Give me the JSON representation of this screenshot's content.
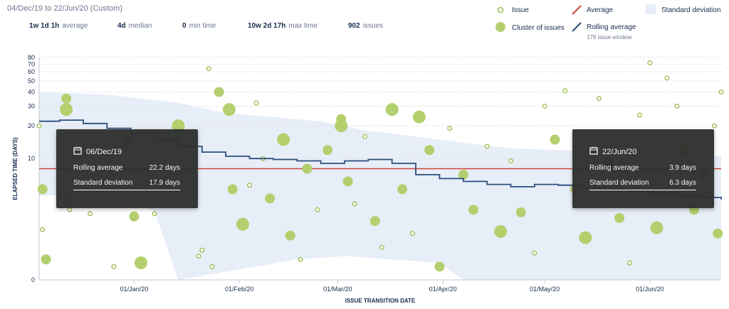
{
  "header": {
    "date_range": "04/Dec/19 to 22/Jun/20 (Custom)",
    "stats": [
      {
        "value": "1w 1d 1h",
        "label": "average"
      },
      {
        "value": "4d",
        "label": "median"
      },
      {
        "value": "0",
        "label": "min time"
      },
      {
        "value": "10w 2d 17h",
        "label": "max time"
      },
      {
        "value": "902",
        "label": "issues"
      }
    ]
  },
  "legend": {
    "issue": "Issue",
    "cluster": "Cluster of issues",
    "average": "Average",
    "rolling": "Rolling average",
    "rolling_window": "179 issue window",
    "stddev": "Standard deviation"
  },
  "colors": {
    "issue": "#a4c15b",
    "cluster": "#b4cf6e",
    "average": "#d04437",
    "rolling": "#2c4d7c",
    "stddev": "#e7eef8",
    "tooltip_bg": "#2f2f2f"
  },
  "tooltips": [
    {
      "date": "06/Dec/19",
      "rolling_label": "Rolling average",
      "rolling_value": "22.2 days",
      "sd_label": "Standard deviation",
      "sd_value": "17.9 days"
    },
    {
      "date": "22/Jun/20",
      "rolling_label": "Rolling average",
      "rolling_value": "3.9 days",
      "sd_label": "Standard deviation",
      "sd_value": "6.3 days"
    }
  ],
  "chart_data": {
    "type": "scatter",
    "xlabel": "ISSUE TRANSITION DATE",
    "ylabel": "ELAPSED TIME (DAYS)",
    "x_range": [
      "2019-12-04",
      "2020-06-22"
    ],
    "x_tick_labels": [
      "01/Jan/20",
      "01/Feb/20",
      "01/Mar/20",
      "01/Apr/20",
      "01/May/20",
      "01/Jun/20"
    ],
    "y_scale": "log",
    "y_ticks": [
      0,
      10,
      20,
      30,
      40,
      50,
      60,
      70,
      80
    ],
    "average_days": 8,
    "rolling_average": [
      [
        "2019-12-04",
        22
      ],
      [
        "2019-12-10",
        22.5
      ],
      [
        "2019-12-17",
        21
      ],
      [
        "2019-12-24",
        19
      ],
      [
        "2019-12-31",
        17
      ],
      [
        "2020-01-07",
        15
      ],
      [
        "2020-01-14",
        13
      ],
      [
        "2020-01-21",
        11.5
      ],
      [
        "2020-01-28",
        10.5
      ],
      [
        "2020-02-04",
        10
      ],
      [
        "2020-02-11",
        9.8
      ],
      [
        "2020-02-18",
        9.5
      ],
      [
        "2020-02-25",
        9
      ],
      [
        "2020-03-03",
        9.5
      ],
      [
        "2020-03-10",
        9.8
      ],
      [
        "2020-03-17",
        9
      ],
      [
        "2020-03-24",
        7
      ],
      [
        "2020-03-31",
        6.4
      ],
      [
        "2020-04-07",
        6
      ],
      [
        "2020-04-14",
        5.6
      ],
      [
        "2020-04-21",
        5.3
      ],
      [
        "2020-04-28",
        5.6
      ],
      [
        "2020-05-05",
        5.5
      ],
      [
        "2020-05-12",
        5.2
      ],
      [
        "2020-05-19",
        5
      ],
      [
        "2020-05-26",
        4.7
      ],
      [
        "2020-06-02",
        4.5
      ],
      [
        "2020-06-09",
        4.3
      ],
      [
        "2020-06-16",
        4.1
      ],
      [
        "2020-06-22",
        3.9
      ]
    ],
    "std_dev_upper": [
      [
        "2019-12-04",
        40
      ],
      [
        "2019-12-24",
        38
      ],
      [
        "2020-01-14",
        32
      ],
      [
        "2020-01-28",
        26
      ],
      [
        "2020-02-11",
        24
      ],
      [
        "2020-02-25",
        22
      ],
      [
        "2020-03-10",
        18
      ],
      [
        "2020-03-24",
        16
      ],
      [
        "2020-04-07",
        14
      ],
      [
        "2020-04-21",
        12.5
      ],
      [
        "2020-05-05",
        12
      ],
      [
        "2020-05-19",
        11.5
      ],
      [
        "2020-06-02",
        11
      ],
      [
        "2020-06-22",
        10.5
      ]
    ],
    "std_dev_lower": [
      [
        "2019-12-04",
        4.3
      ],
      [
        "2019-12-24",
        4.4
      ],
      [
        "2020-01-07",
        2.9
      ],
      [
        "2020-01-14",
        0
      ],
      [
        "2020-02-18",
        0.5
      ],
      [
        "2020-03-03",
        0.6
      ],
      [
        "2020-03-31",
        0.4
      ],
      [
        "2020-04-07",
        0
      ],
      [
        "2020-06-22",
        0
      ]
    ],
    "issues": [
      [
        "2019-12-04",
        20,
        1
      ],
      [
        "2019-12-05",
        5,
        2
      ],
      [
        "2019-12-05",
        1.7,
        1
      ],
      [
        "2019-12-06",
        0.5,
        2
      ],
      [
        "2019-12-12",
        28,
        3
      ],
      [
        "2019-12-12",
        35,
        2
      ],
      [
        "2019-12-13",
        4,
        2
      ],
      [
        "2019-12-13",
        3,
        1
      ],
      [
        "2019-12-19",
        2.7,
        1
      ],
      [
        "2019-12-26",
        0.3,
        1
      ],
      [
        "2019-12-30",
        14,
        2
      ],
      [
        "2020-01-01",
        2.5,
        2
      ],
      [
        "2020-01-03",
        0.4,
        3
      ],
      [
        "2020-01-07",
        10,
        1
      ],
      [
        "2020-01-07",
        2.7,
        1
      ],
      [
        "2020-01-14",
        20,
        3
      ],
      [
        "2020-01-20",
        0.6,
        1
      ],
      [
        "2020-01-21",
        0.8,
        1
      ],
      [
        "2020-01-23",
        64,
        1
      ],
      [
        "2020-01-24",
        0.3,
        1
      ],
      [
        "2020-01-26",
        40,
        2
      ],
      [
        "2020-01-29",
        28,
        3
      ],
      [
        "2020-01-30",
        5,
        2
      ],
      [
        "2020-02-02",
        2,
        3
      ],
      [
        "2020-02-04",
        5.5,
        1
      ],
      [
        "2020-02-06",
        32,
        1
      ],
      [
        "2020-02-08",
        10,
        1
      ],
      [
        "2020-02-10",
        4,
        2
      ],
      [
        "2020-02-14",
        15,
        3
      ],
      [
        "2020-02-16",
        1.4,
        2
      ],
      [
        "2020-02-19",
        0.5,
        1
      ],
      [
        "2020-02-21",
        8,
        2
      ],
      [
        "2020-02-24",
        3,
        1
      ],
      [
        "2020-02-27",
        12,
        2
      ],
      [
        "2020-03-02",
        20,
        3
      ],
      [
        "2020-03-02",
        23,
        2
      ],
      [
        "2020-03-04",
        6,
        2
      ],
      [
        "2020-03-06",
        3.5,
        1
      ],
      [
        "2020-03-09",
        16,
        1
      ],
      [
        "2020-03-12",
        2.2,
        2
      ],
      [
        "2020-03-14",
        0.9,
        1
      ],
      [
        "2020-03-17",
        28,
        3
      ],
      [
        "2020-03-20",
        5,
        2
      ],
      [
        "2020-03-23",
        1.5,
        1
      ],
      [
        "2020-03-25",
        24,
        3
      ],
      [
        "2020-03-28",
        12,
        2
      ],
      [
        "2020-03-31",
        0.3,
        2
      ],
      [
        "2020-04-03",
        19,
        1
      ],
      [
        "2020-04-07",
        7,
        2
      ],
      [
        "2020-04-10",
        3,
        2
      ],
      [
        "2020-04-14",
        13,
        1
      ],
      [
        "2020-04-18",
        1.6,
        3
      ],
      [
        "2020-04-21",
        9.5,
        1
      ],
      [
        "2020-04-24",
        2.8,
        2
      ],
      [
        "2020-04-28",
        0.7,
        1
      ],
      [
        "2020-05-01",
        30,
        1
      ],
      [
        "2020-05-04",
        15,
        2
      ],
      [
        "2020-05-07",
        41,
        1
      ],
      [
        "2020-05-10",
        5,
        2
      ],
      [
        "2020-05-13",
        1.3,
        3
      ],
      [
        "2020-05-17",
        35,
        1
      ],
      [
        "2020-05-20",
        9,
        2
      ],
      [
        "2020-05-23",
        2.4,
        2
      ],
      [
        "2020-05-26",
        0.4,
        1
      ],
      [
        "2020-05-29",
        25,
        1
      ],
      [
        "2020-06-01",
        72,
        1
      ],
      [
        "2020-06-03",
        1.8,
        3
      ],
      [
        "2020-06-06",
        53,
        1
      ],
      [
        "2020-06-09",
        30,
        1
      ],
      [
        "2020-06-11",
        12,
        2
      ],
      [
        "2020-06-14",
        3,
        2
      ],
      [
        "2020-06-17",
        7,
        2
      ],
      [
        "2020-06-20",
        20,
        1
      ],
      [
        "2020-06-22",
        40,
        1
      ],
      [
        "2020-06-21",
        1.5,
        2
      ]
    ]
  }
}
